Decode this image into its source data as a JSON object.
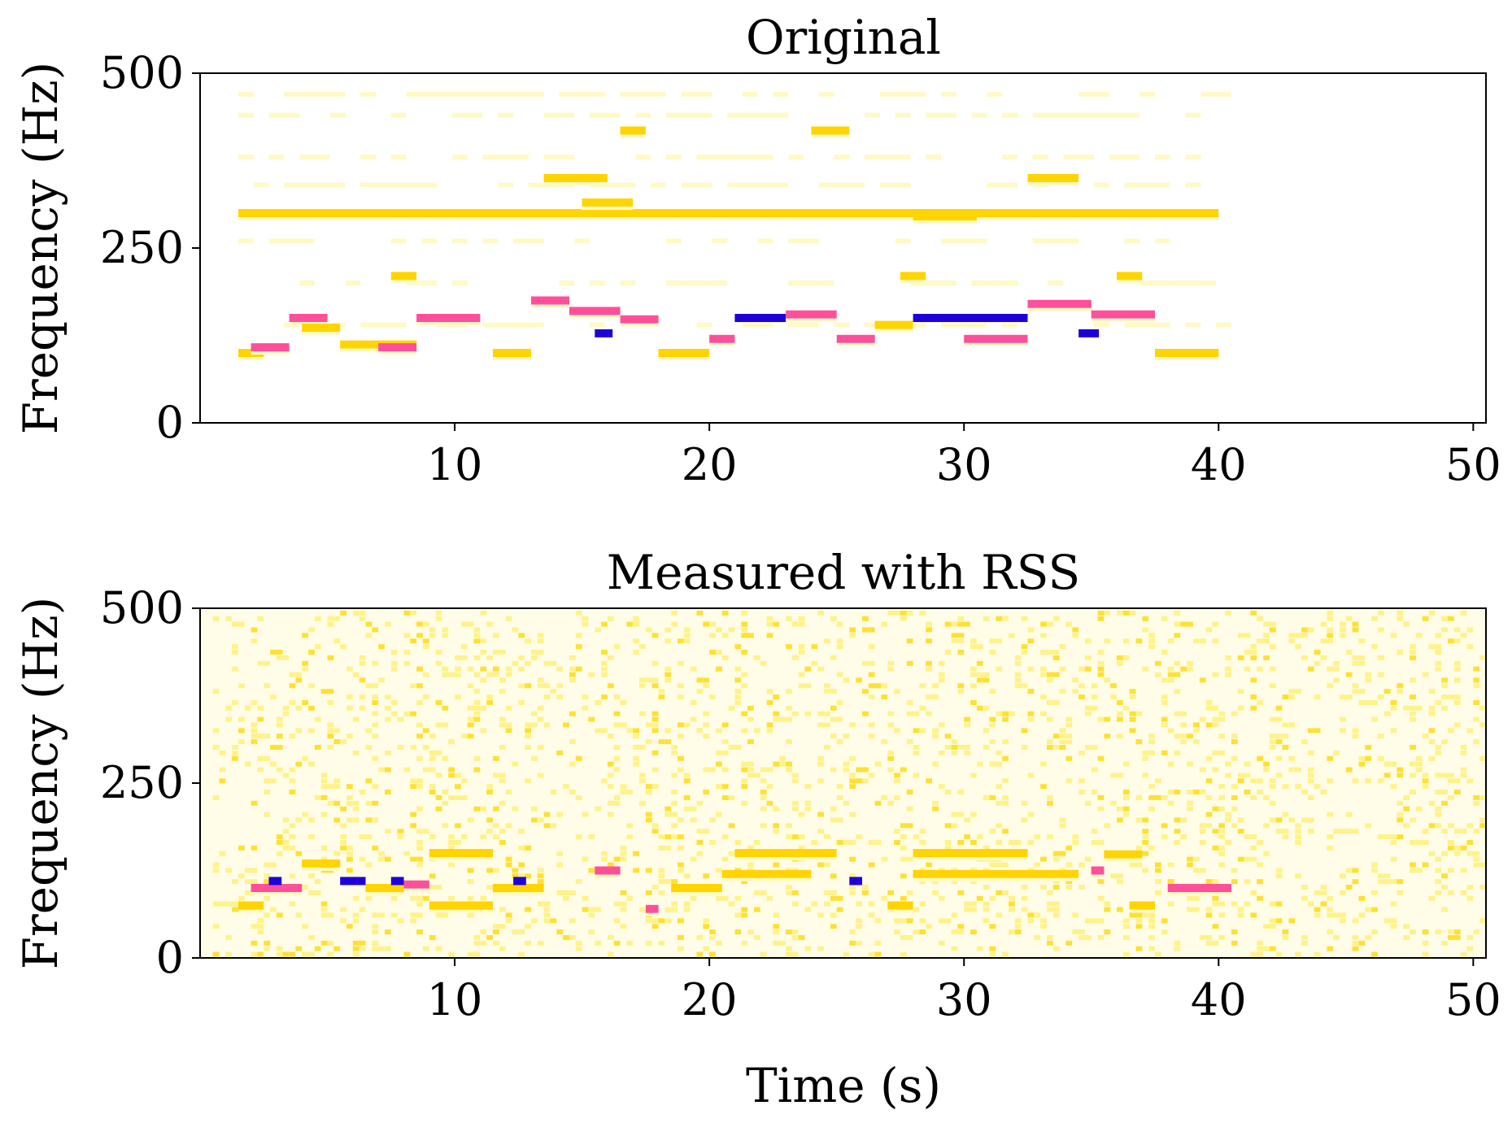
{
  "chart_data": [
    {
      "type": "heatmap",
      "title": "Original",
      "xlabel": "",
      "ylabel": "Frequency (Hz)",
      "xlim": [
        0,
        50.5
      ],
      "ylim": [
        0,
        500
      ],
      "xticks": [
        10,
        20,
        30,
        40,
        50
      ],
      "yticks": [
        0,
        250,
        500
      ],
      "colors": {
        "low": "#fff9c4",
        "mid": "#ffd400",
        "high": "#ff4f9a",
        "peak": "#1e00d8"
      },
      "segments": [
        {
          "t0": 1.5,
          "t1": 2.5,
          "f": 100,
          "c": "mid"
        },
        {
          "t0": 2.0,
          "t1": 3.5,
          "f": 108,
          "c": "high"
        },
        {
          "t0": 3.5,
          "t1": 5.0,
          "f": 150,
          "c": "high"
        },
        {
          "t0": 4.0,
          "t1": 5.5,
          "f": 136,
          "c": "mid"
        },
        {
          "t0": 5.5,
          "t1": 8.5,
          "f": 112,
          "c": "mid"
        },
        {
          "t0": 7.0,
          "t1": 8.5,
          "f": 108,
          "c": "high"
        },
        {
          "t0": 8.5,
          "t1": 11.0,
          "f": 150,
          "c": "high"
        },
        {
          "t0": 11.5,
          "t1": 13.0,
          "f": 100,
          "c": "mid"
        },
        {
          "t0": 13.0,
          "t1": 14.5,
          "f": 175,
          "c": "high"
        },
        {
          "t0": 14.5,
          "t1": 16.5,
          "f": 160,
          "c": "high"
        },
        {
          "t0": 15.5,
          "t1": 16.2,
          "f": 128,
          "c": "peak"
        },
        {
          "t0": 16.5,
          "t1": 18.0,
          "f": 148,
          "c": "high"
        },
        {
          "t0": 18.0,
          "t1": 20.0,
          "f": 100,
          "c": "mid"
        },
        {
          "t0": 20.0,
          "t1": 21.0,
          "f": 120,
          "c": "high"
        },
        {
          "t0": 21.0,
          "t1": 23.0,
          "f": 150,
          "c": "peak"
        },
        {
          "t0": 23.0,
          "t1": 25.0,
          "f": 155,
          "c": "high"
        },
        {
          "t0": 25.0,
          "t1": 26.5,
          "f": 120,
          "c": "high"
        },
        {
          "t0": 26.5,
          "t1": 28.0,
          "f": 140,
          "c": "mid"
        },
        {
          "t0": 28.0,
          "t1": 32.5,
          "f": 150,
          "c": "peak"
        },
        {
          "t0": 30.0,
          "t1": 32.5,
          "f": 120,
          "c": "high"
        },
        {
          "t0": 32.5,
          "t1": 35.0,
          "f": 170,
          "c": "high"
        },
        {
          "t0": 34.5,
          "t1": 35.3,
          "f": 128,
          "c": "peak"
        },
        {
          "t0": 35.0,
          "t1": 37.5,
          "f": 155,
          "c": "high"
        },
        {
          "t0": 37.5,
          "t1": 40.0,
          "f": 100,
          "c": "mid"
        },
        {
          "t0": 1.5,
          "t1": 40.0,
          "f": 300,
          "c": "mid"
        },
        {
          "t0": 13.5,
          "t1": 16.0,
          "f": 350,
          "c": "mid"
        },
        {
          "t0": 15.0,
          "t1": 17.0,
          "f": 315,
          "c": "mid"
        },
        {
          "t0": 28.0,
          "t1": 30.5,
          "f": 295,
          "c": "mid"
        },
        {
          "t0": 32.5,
          "t1": 34.5,
          "f": 350,
          "c": "mid"
        },
        {
          "t0": 7.5,
          "t1": 8.5,
          "f": 210,
          "c": "mid"
        },
        {
          "t0": 27.5,
          "t1": 28.5,
          "f": 210,
          "c": "mid"
        },
        {
          "t0": 36.0,
          "t1": 37.0,
          "f": 210,
          "c": "mid"
        },
        {
          "t0": 24.0,
          "t1": 25.5,
          "f": 418,
          "c": "mid"
        },
        {
          "t0": 16.5,
          "t1": 17.5,
          "f": 418,
          "c": "mid"
        }
      ]
    },
    {
      "type": "heatmap",
      "title": "Measured with RSS",
      "xlabel": "Time (s)",
      "ylabel": "Frequency (Hz)",
      "xlim": [
        0,
        50.5
      ],
      "ylim": [
        0,
        500
      ],
      "xticks": [
        10,
        20,
        30,
        40,
        50
      ],
      "yticks": [
        0,
        250,
        500
      ],
      "colors": {
        "low": "#fff9c4",
        "mid": "#ffd400",
        "high": "#ff4f9a",
        "peak": "#1e00d8"
      },
      "segments": [
        {
          "t0": 1.5,
          "t1": 2.5,
          "f": 75,
          "c": "mid"
        },
        {
          "t0": 2.0,
          "t1": 4.0,
          "f": 100,
          "c": "high"
        },
        {
          "t0": 2.7,
          "t1": 3.2,
          "f": 110,
          "c": "peak"
        },
        {
          "t0": 4.0,
          "t1": 5.5,
          "f": 135,
          "c": "mid"
        },
        {
          "t0": 5.5,
          "t1": 6.5,
          "f": 110,
          "c": "peak"
        },
        {
          "t0": 6.5,
          "t1": 8.0,
          "f": 100,
          "c": "mid"
        },
        {
          "t0": 7.5,
          "t1": 8.0,
          "f": 110,
          "c": "peak"
        },
        {
          "t0": 8.0,
          "t1": 9.0,
          "f": 105,
          "c": "high"
        },
        {
          "t0": 9.0,
          "t1": 11.5,
          "f": 75,
          "c": "mid"
        },
        {
          "t0": 9.0,
          "t1": 11.5,
          "f": 150,
          "c": "mid"
        },
        {
          "t0": 11.5,
          "t1": 13.5,
          "f": 100,
          "c": "mid"
        },
        {
          "t0": 12.3,
          "t1": 12.8,
          "f": 110,
          "c": "peak"
        },
        {
          "t0": 15.5,
          "t1": 16.5,
          "f": 125,
          "c": "high"
        },
        {
          "t0": 17.5,
          "t1": 18.0,
          "f": 70,
          "c": "high"
        },
        {
          "t0": 18.5,
          "t1": 20.5,
          "f": 100,
          "c": "mid"
        },
        {
          "t0": 21.0,
          "t1": 25.0,
          "f": 150,
          "c": "mid"
        },
        {
          "t0": 20.5,
          "t1": 24.0,
          "f": 120,
          "c": "mid"
        },
        {
          "t0": 25.5,
          "t1": 26.0,
          "f": 110,
          "c": "peak"
        },
        {
          "t0": 27.0,
          "t1": 28.0,
          "f": 75,
          "c": "mid"
        },
        {
          "t0": 28.0,
          "t1": 32.5,
          "f": 150,
          "c": "mid"
        },
        {
          "t0": 28.0,
          "t1": 34.5,
          "f": 120,
          "c": "mid"
        },
        {
          "t0": 35.0,
          "t1": 35.5,
          "f": 125,
          "c": "high"
        },
        {
          "t0": 35.5,
          "t1": 37.0,
          "f": 148,
          "c": "mid"
        },
        {
          "t0": 36.5,
          "t1": 37.5,
          "f": 75,
          "c": "mid"
        },
        {
          "t0": 38.0,
          "t1": 40.5,
          "f": 100,
          "c": "high"
        }
      ],
      "noise": true
    }
  ]
}
